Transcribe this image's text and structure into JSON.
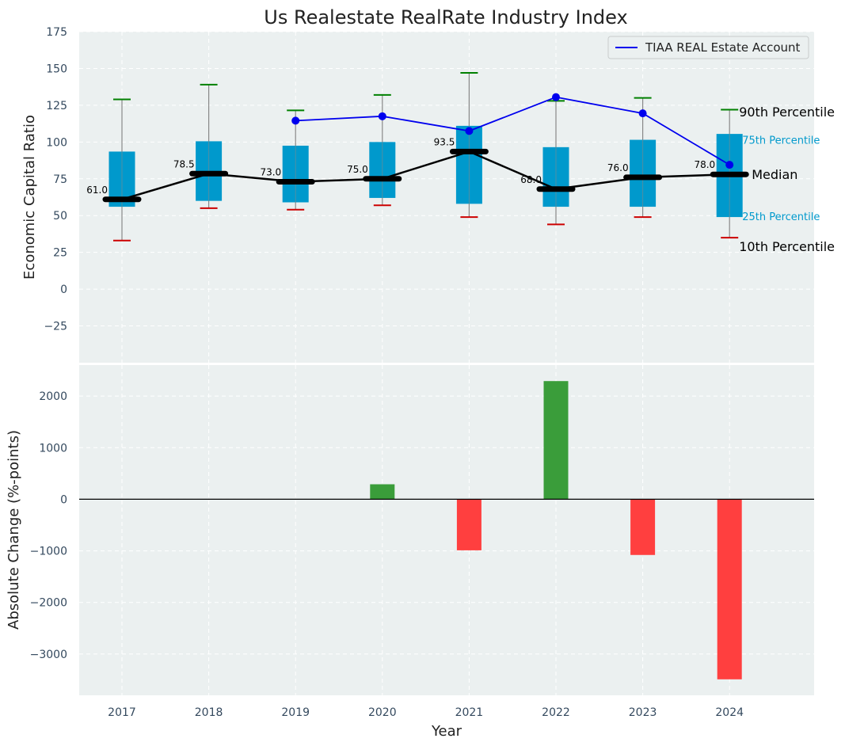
{
  "chart_data": [
    {
      "type": "box",
      "title": "Us Realestate RealRate Industry Index",
      "ylabel": "Economic Capital Ratio",
      "ylim": [
        -50,
        175
      ],
      "yticks": [
        -25,
        0,
        25,
        50,
        75,
        100,
        125,
        150,
        175
      ],
      "ytick_labels": [
        "−25",
        "0",
        "25",
        "50",
        "75",
        "100",
        "125",
        "150",
        "175"
      ],
      "categories": [
        "2017",
        "2018",
        "2019",
        "2020",
        "2021",
        "2022",
        "2023",
        "2024"
      ],
      "boxes": [
        {
          "year": "2017",
          "p10": 33,
          "p25": 56,
          "median": 61.0,
          "p75": 93.5,
          "p90": 129
        },
        {
          "year": "2018",
          "p10": 55,
          "p25": 60,
          "median": 78.5,
          "p75": 100.5,
          "p90": 139
        },
        {
          "year": "2019",
          "p10": 54,
          "p25": 59,
          "median": 73.0,
          "p75": 97.5,
          "p90": 121.5
        },
        {
          "year": "2020",
          "p10": 57,
          "p25": 62,
          "median": 75.0,
          "p75": 100,
          "p90": 132
        },
        {
          "year": "2021",
          "p10": 49,
          "p25": 58,
          "median": 93.5,
          "p75": 111,
          "p90": 147
        },
        {
          "year": "2022",
          "p10": 44,
          "p25": 56,
          "median": 68.0,
          "p75": 96.5,
          "p90": 128
        },
        {
          "year": "2023",
          "p10": 49,
          "p25": 56,
          "median": 76.0,
          "p75": 101.5,
          "p90": 130
        },
        {
          "year": "2024",
          "p10": 35,
          "p25": 49,
          "median": 78.0,
          "p75": 105.5,
          "p90": 122
        }
      ],
      "median_labels": [
        "61.0",
        "78.5",
        "73.0",
        "75.0",
        "93.5",
        "68.0",
        "76.0",
        "78.0"
      ],
      "series": [
        {
          "name": "TIAA REAL Estate Account",
          "color": "#0000ee",
          "x": [
            "2019",
            "2020",
            "2021",
            "2022",
            "2023",
            "2024"
          ],
          "values": [
            114.5,
            117.5,
            107.5,
            130.5,
            119.5,
            84.5
          ]
        }
      ],
      "legend": {
        "position": "top-right",
        "label": "TIAA REAL Estate Account"
      },
      "annotations": {
        "p90": "90th Percentile",
        "p75": "75th Percentile",
        "median": "Median",
        "p25": "25th Percentile",
        "p10": "10th Percentile"
      },
      "colors": {
        "box": "#0099cc",
        "median_line": "#000000",
        "p90_cap": "#008000",
        "p10_cap": "#cc0000",
        "whisker": "#888888",
        "background": "#ebf0f0"
      },
      "grid": true
    },
    {
      "type": "bar",
      "xlabel": "Year",
      "ylabel": "Absolute Change (%-points)",
      "ylim": [
        -3800,
        2600
      ],
      "yticks": [
        -3000,
        -2000,
        -1000,
        0,
        1000,
        2000
      ],
      "ytick_labels": [
        "−3000",
        "−2000",
        "−1000",
        "0",
        "1000",
        "2000"
      ],
      "categories": [
        "2017",
        "2018",
        "2019",
        "2020",
        "2021",
        "2022",
        "2023",
        "2024"
      ],
      "values": [
        0,
        0,
        0,
        290,
        -990,
        2290,
        -1080,
        -3490
      ],
      "colors": {
        "positive": "#3a9d3a",
        "negative": "#ff3f3f",
        "background": "#ebf0f0"
      },
      "grid": true
    }
  ]
}
